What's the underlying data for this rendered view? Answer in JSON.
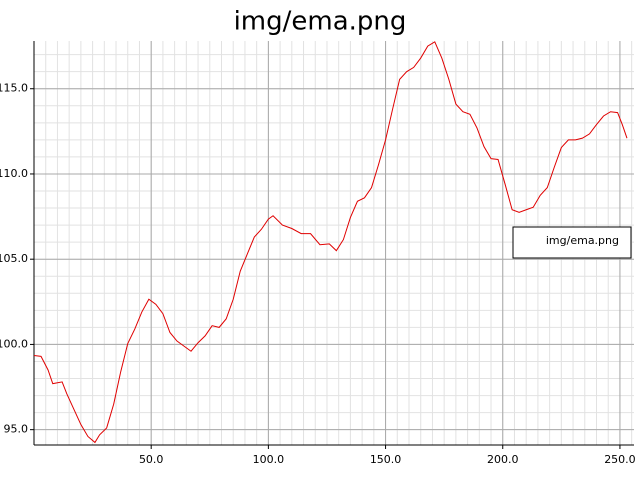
{
  "chart_data": {
    "type": "line",
    "title": "img/ema.png",
    "x": [
      0,
      3,
      6,
      8,
      12,
      14,
      17,
      20,
      23,
      26,
      28,
      31,
      34,
      37,
      40,
      43,
      46,
      49,
      52,
      55,
      58,
      61,
      64,
      67,
      70,
      73,
      76,
      79,
      82,
      85,
      88,
      91,
      94,
      97,
      100,
      102,
      106,
      110,
      114,
      118,
      122,
      126,
      129,
      132,
      135,
      138,
      141,
      144,
      147,
      150,
      153,
      156,
      159,
      162,
      165,
      168,
      171,
      174,
      177,
      180,
      183,
      186,
      189,
      192,
      195,
      198,
      201,
      204,
      207,
      210,
      213,
      216,
      219,
      222,
      225,
      228,
      231,
      234,
      237,
      240,
      243,
      246,
      249,
      251,
      253
    ],
    "series": [
      {
        "name": "img/ema.png",
        "color": "#e00000",
        "values": [
          99.35,
          99.3,
          98.5,
          97.7,
          97.8,
          97.1,
          96.2,
          95.3,
          94.6,
          94.25,
          94.7,
          95.1,
          96.5,
          98.4,
          100.05,
          100.9,
          101.9,
          102.65,
          102.35,
          101.8,
          100.7,
          100.2,
          99.9,
          99.6,
          100.1,
          100.5,
          101.1,
          101.0,
          101.5,
          102.65,
          104.3,
          105.3,
          106.3,
          106.75,
          107.35,
          107.55,
          107.0,
          106.8,
          106.5,
          106.5,
          105.85,
          105.9,
          105.5,
          106.15,
          107.45,
          108.4,
          108.6,
          109.2,
          110.55,
          112.0,
          113.8,
          115.55,
          116.0,
          116.25,
          116.8,
          117.5,
          117.75,
          116.8,
          115.55,
          114.1,
          113.65,
          113.5,
          112.7,
          111.6,
          110.9,
          110.85,
          109.4,
          107.9,
          107.75,
          107.9,
          108.05,
          108.75,
          109.2,
          110.4,
          111.55,
          112.0,
          112.0,
          112.1,
          112.35,
          112.9,
          113.4,
          113.65,
          113.6,
          112.9,
          112.1
        ]
      }
    ],
    "xlim": [
      0,
      256
    ],
    "ylim": [
      94.1,
      117.8
    ],
    "xticks": [
      {
        "value": 50,
        "label": "50.0"
      },
      {
        "value": 100,
        "label": "100.0"
      },
      {
        "value": 150,
        "label": "150.0"
      },
      {
        "value": 200,
        "label": "200.0"
      },
      {
        "value": 250,
        "label": "250.0"
      }
    ],
    "yticks": [
      {
        "value": 95,
        "label": "95.0"
      },
      {
        "value": 100,
        "label": "100.0"
      },
      {
        "value": 105,
        "label": "105.0"
      },
      {
        "value": 110,
        "label": "110.0"
      },
      {
        "value": 115,
        "label": "115.0"
      }
    ],
    "grid": true,
    "legend": "right"
  }
}
